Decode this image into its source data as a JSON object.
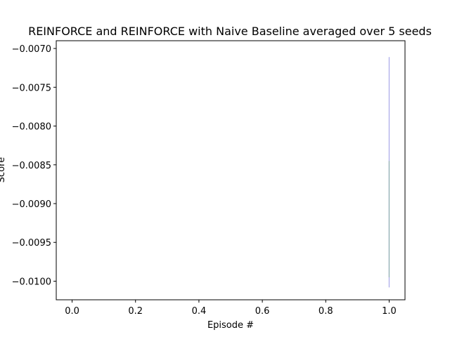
{
  "chart_data": {
    "type": "line",
    "title": "REINFORCE and REINFORCE with Naive Baseline averaged over 5 seeds",
    "xlabel": "Episode #",
    "ylabel": "Score",
    "xlim": [
      -0.05,
      1.05
    ],
    "ylim": [
      -0.01024,
      -0.0069
    ],
    "x_ticks": [
      0.0,
      0.2,
      0.4,
      0.6,
      0.8,
      1.0
    ],
    "x_tick_labels": [
      "0.0",
      "0.2",
      "0.4",
      "0.6",
      "0.8",
      "1.0"
    ],
    "y_ticks": [
      -0.01,
      -0.0095,
      -0.009,
      -0.0085,
      -0.008,
      -0.0075,
      -0.007
    ],
    "y_tick_labels": [
      "−0.0100",
      "−0.0095",
      "−0.0090",
      "−0.0085",
      "−0.0080",
      "−0.0075",
      "−0.0070"
    ],
    "grid": false,
    "series": [
      {
        "x": [
          1.0,
          1.0
        ],
        "y": [
          -0.00711,
          -0.01008
        ],
        "color": "#a9a8e8"
      },
      {
        "x": [
          1.0,
          1.0
        ],
        "y": [
          -0.00845,
          -0.00995
        ],
        "color": "#8fb0b0"
      }
    ]
  }
}
